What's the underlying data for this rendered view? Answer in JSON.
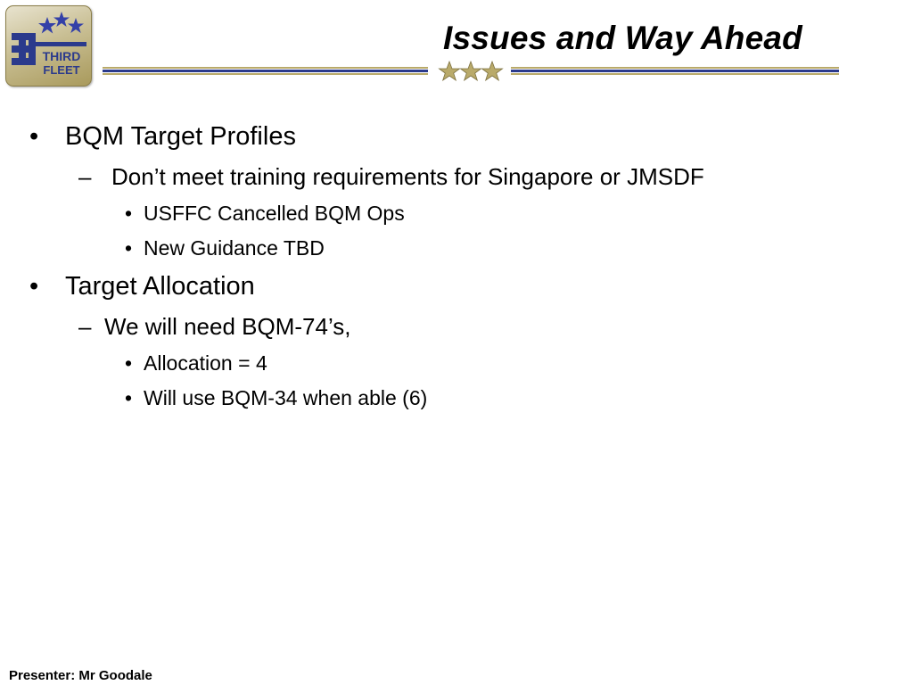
{
  "slide": {
    "title": "Issues and Way Ahead",
    "logo_text": [
      "THIRD",
      "FLEET"
    ],
    "logo_number": "3",
    "bullets": [
      {
        "marker": "•",
        "text": "BQM Target Profiles",
        "level": 1
      },
      {
        "marker": "–",
        "text": "Don’t meet training requirements for Singapore or JMSDF",
        "level": 2
      },
      {
        "marker": "•",
        "text": "USFFC Cancelled BQM Ops",
        "level": 3
      },
      {
        "marker": "•",
        "text": "New Guidance TBD",
        "level": 3
      },
      {
        "marker": "•",
        "text": "Target Allocation",
        "level": 1
      },
      {
        "marker": "–",
        "text": "We will need BQM-74’s,",
        "level": 2
      },
      {
        "marker": "•",
        "text": "Allocation = 4",
        "level": 3
      },
      {
        "marker": "•",
        "text": "Will use BQM-34 when able (6)",
        "level": 3
      }
    ],
    "footer": "Presenter: Mr Goodale"
  },
  "colors": {
    "navy": "#2b3a8c",
    "gold": "#b9aa6a",
    "star_blue": "#3340a8"
  },
  "icons": [
    "third-fleet-logo",
    "three-star-emblem"
  ]
}
